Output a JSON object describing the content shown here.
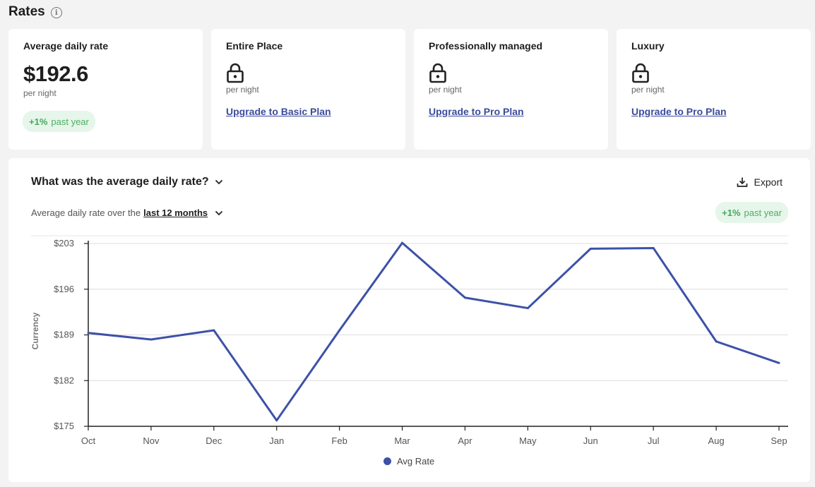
{
  "header": {
    "title": "Rates",
    "info_icon": "info-icon"
  },
  "cards": [
    {
      "title": "Average daily rate",
      "value": "$192.6",
      "sub": "per night",
      "change": "+1%",
      "change_text": "past year"
    },
    {
      "title": "Entire Place",
      "icon": "lock-icon",
      "sub": "per night",
      "link": "Upgrade to Basic Plan"
    },
    {
      "title": "Professionally managed",
      "icon": "lock-icon",
      "sub": "per night",
      "link": "Upgrade to Pro Plan"
    },
    {
      "title": "Luxury",
      "icon": "lock-icon",
      "sub": "per night",
      "link": "Upgrade to Pro Plan"
    }
  ],
  "chart_panel": {
    "question": "What was the average daily rate?",
    "export_label": "Export",
    "subtitle_prefix": "Average daily rate over the",
    "period": "last 12 months",
    "change": "+1%",
    "change_text": "past year"
  },
  "colors": {
    "line": "#3d51a8",
    "positive": "#45a85c",
    "link": "#3b4c9b"
  },
  "chart_data": {
    "type": "line",
    "categories": [
      "Oct",
      "Nov",
      "Dec",
      "Jan",
      "Feb",
      "Mar",
      "Apr",
      "May",
      "Jun",
      "Jul",
      "Aug",
      "Sep"
    ],
    "series": [
      {
        "name": "Avg Rate",
        "values": [
          189.3,
          188.3,
          189.7,
          175.9,
          189.7,
          203.1,
          194.7,
          193.1,
          202.2,
          202.3,
          188.0,
          184.7
        ]
      }
    ],
    "ylabel": "Currency",
    "yticks": [
      "$175",
      "$182",
      "$189",
      "$196",
      "$203"
    ],
    "ytick_values": [
      175,
      182,
      189,
      196,
      203
    ],
    "ylim": [
      175,
      203
    ],
    "grid": true,
    "legend": "bottom"
  }
}
